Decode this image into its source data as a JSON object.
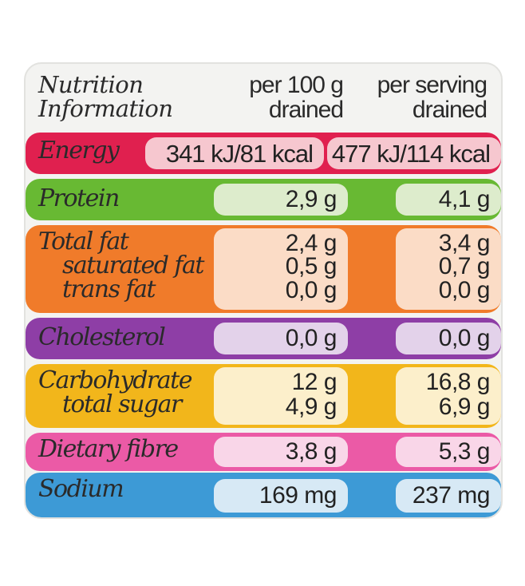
{
  "header": {
    "title_line1": "Nutrition",
    "title_line2": "Information",
    "col1_line1": "per 100 g",
    "col1_line2": "drained",
    "col2_line1": "per serving",
    "col2_line2": "drained"
  },
  "rows": {
    "energy": {
      "label": "Energy",
      "per100": "341 kJ/81 kcal",
      "serving": "477 kJ/114 kcal",
      "color": "#e0204f"
    },
    "protein": {
      "label": "Protein",
      "per100": "2,9 g",
      "serving": "4,1 g",
      "color": "#68b933"
    },
    "fat": {
      "label": "Total fat",
      "per100": "2,4 g",
      "serving": "3,4 g",
      "saturated_label": "saturated fat",
      "saturated_per100": "0,5 g",
      "saturated_serving": "0,7 g",
      "trans_label": "trans fat",
      "trans_per100": "0,0 g",
      "trans_serving": "0,0 g",
      "color": "#f07b2a"
    },
    "cholesterol": {
      "label": "Cholesterol",
      "per100": "0,0 g",
      "serving": "0,0 g",
      "color": "#8e3ea6"
    },
    "carbohydrate": {
      "label": "Carbohydrate",
      "per100": "12 g",
      "serving": "16,8 g",
      "sugar_label": "total sugar",
      "sugar_per100": "4,9 g",
      "sugar_serving": "6,9 g",
      "color": "#f2b61b"
    },
    "fibre": {
      "label": "Dietary fibre",
      "per100": "3,8 g",
      "serving": "5,3 g",
      "color": "#eb5aa6"
    },
    "sodium": {
      "label": "Sodium",
      "per100": "169 mg",
      "serving": "237 mg",
      "color": "#3d9ad6"
    }
  }
}
